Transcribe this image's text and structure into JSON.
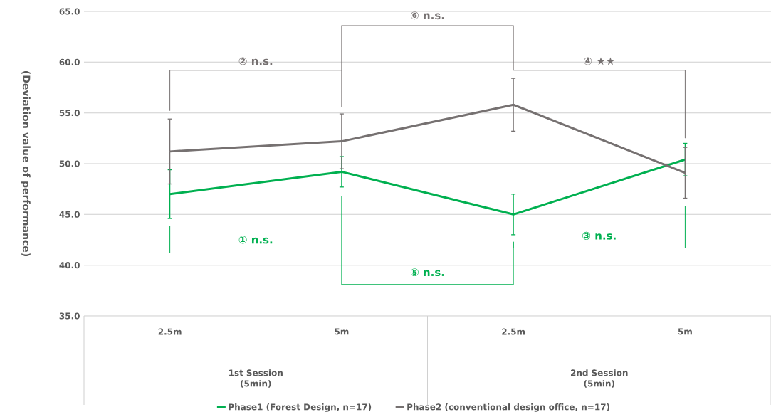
{
  "chart_data": {
    "type": "line",
    "ylabel": "(Deviation value of performance)",
    "categories": [
      "2.5m",
      "5m",
      "2.5m",
      "5m"
    ],
    "series": [
      {
        "name": "Phase1 (Forest Design, n=17)",
        "color": "#00b050",
        "values": [
          47.0,
          49.2,
          45.0,
          50.4
        ],
        "errors": [
          2.4,
          1.5,
          2.0,
          1.6
        ]
      },
      {
        "name": "Phase2 (conventional design office, n=17)",
        "color": "#767171",
        "values": [
          51.2,
          52.2,
          55.8,
          49.1
        ],
        "errors": [
          3.2,
          2.7,
          2.6,
          2.5
        ]
      }
    ],
    "ylim": [
      35,
      65
    ],
    "yticks": [
      {
        "value": 35,
        "label": "35.0"
      },
      {
        "value": 40,
        "label": "40.0"
      },
      {
        "value": 45,
        "label": "45.0"
      },
      {
        "value": 50,
        "label": "50.0"
      },
      {
        "value": 55,
        "label": "55.0"
      },
      {
        "value": 60,
        "label": "60.0"
      },
      {
        "value": 65,
        "label": "65.0"
      }
    ],
    "grid": "y",
    "legend": "bottom",
    "marker": "none",
    "line_style": "solid",
    "annotations": [
      "① n.s.",
      "② n.s.",
      "③ n.s.",
      "④ ★★",
      "⑤ n.s.",
      "⑥ n.s.",
      "1st Session (5min)",
      "2nd Session (5min)"
    ]
  }
}
